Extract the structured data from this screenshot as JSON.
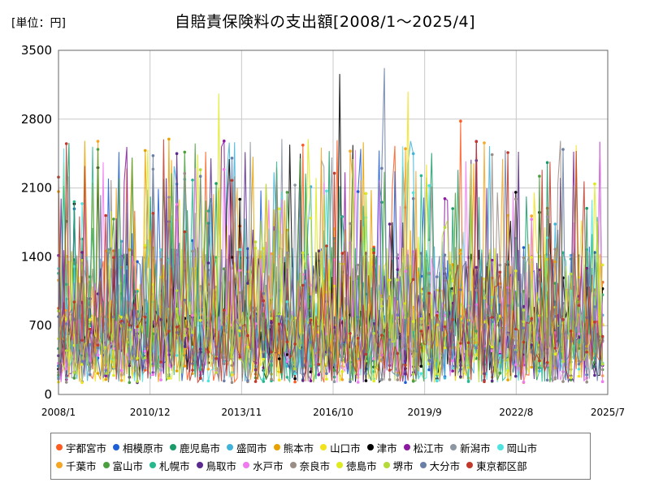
{
  "header": {
    "unit_label": "[単位：円]",
    "title": "自賠責保険料の支出額[2008/1～2025/4]"
  },
  "chart_data": {
    "type": "line",
    "title": "自賠責保険料の支出額[2008/1～2025/4]",
    "unit": "円",
    "ylim": [
      0,
      3500
    ],
    "yticks": [
      0,
      700,
      1400,
      2100,
      2800,
      3500
    ],
    "x_range": [
      "2008/1",
      "2025/4"
    ],
    "xticks": [
      "2008/1",
      "2010/12",
      "2013/11",
      "2016/10",
      "2019/9",
      "2022/8",
      "2025/7"
    ],
    "grid": true,
    "legend_position": "bottom",
    "series": [
      {
        "name": "宇都宮市",
        "color": "#ff5a1f"
      },
      {
        "name": "相模原市",
        "color": "#1d5fd6"
      },
      {
        "name": "鹿児島市",
        "color": "#1a9c6a"
      },
      {
        "name": "盛岡市",
        "color": "#3fb3d9"
      },
      {
        "name": "熊本市",
        "color": "#e8a200"
      },
      {
        "name": "山口市",
        "color": "#f2e21a"
      },
      {
        "name": "津市",
        "color": "#000000"
      },
      {
        "name": "松江市",
        "color": "#8b1aa0"
      },
      {
        "name": "新潟市",
        "color": "#8c97a3"
      },
      {
        "name": "岡山市",
        "color": "#4fe3e0"
      },
      {
        "name": "千葉市",
        "color": "#f5a623"
      },
      {
        "name": "富山市",
        "color": "#4aa03c"
      },
      {
        "name": "札幌市",
        "color": "#29b88e"
      },
      {
        "name": "鳥取市",
        "color": "#5b2a8c"
      },
      {
        "name": "水戸市",
        "color": "#f078f0"
      },
      {
        "name": "奈良市",
        "color": "#9a8d85"
      },
      {
        "name": "徳島市",
        "color": "#dfea1f"
      },
      {
        "name": "堺市",
        "color": "#b5db3a"
      },
      {
        "name": "大分市",
        "color": "#6a7fa8"
      },
      {
        "name": "東京都区部",
        "color": "#c0392b"
      }
    ],
    "notable_values": [
      {
        "label": "大分市 peak",
        "value": 3320
      },
      {
        "label": "津市 peak",
        "value": 3260
      },
      {
        "label": "山口市 peak",
        "value": 3080
      },
      {
        "label": "徳島市 peak",
        "value": 3060
      },
      {
        "label": "宇都宮市 peak",
        "value": 2780
      }
    ]
  }
}
